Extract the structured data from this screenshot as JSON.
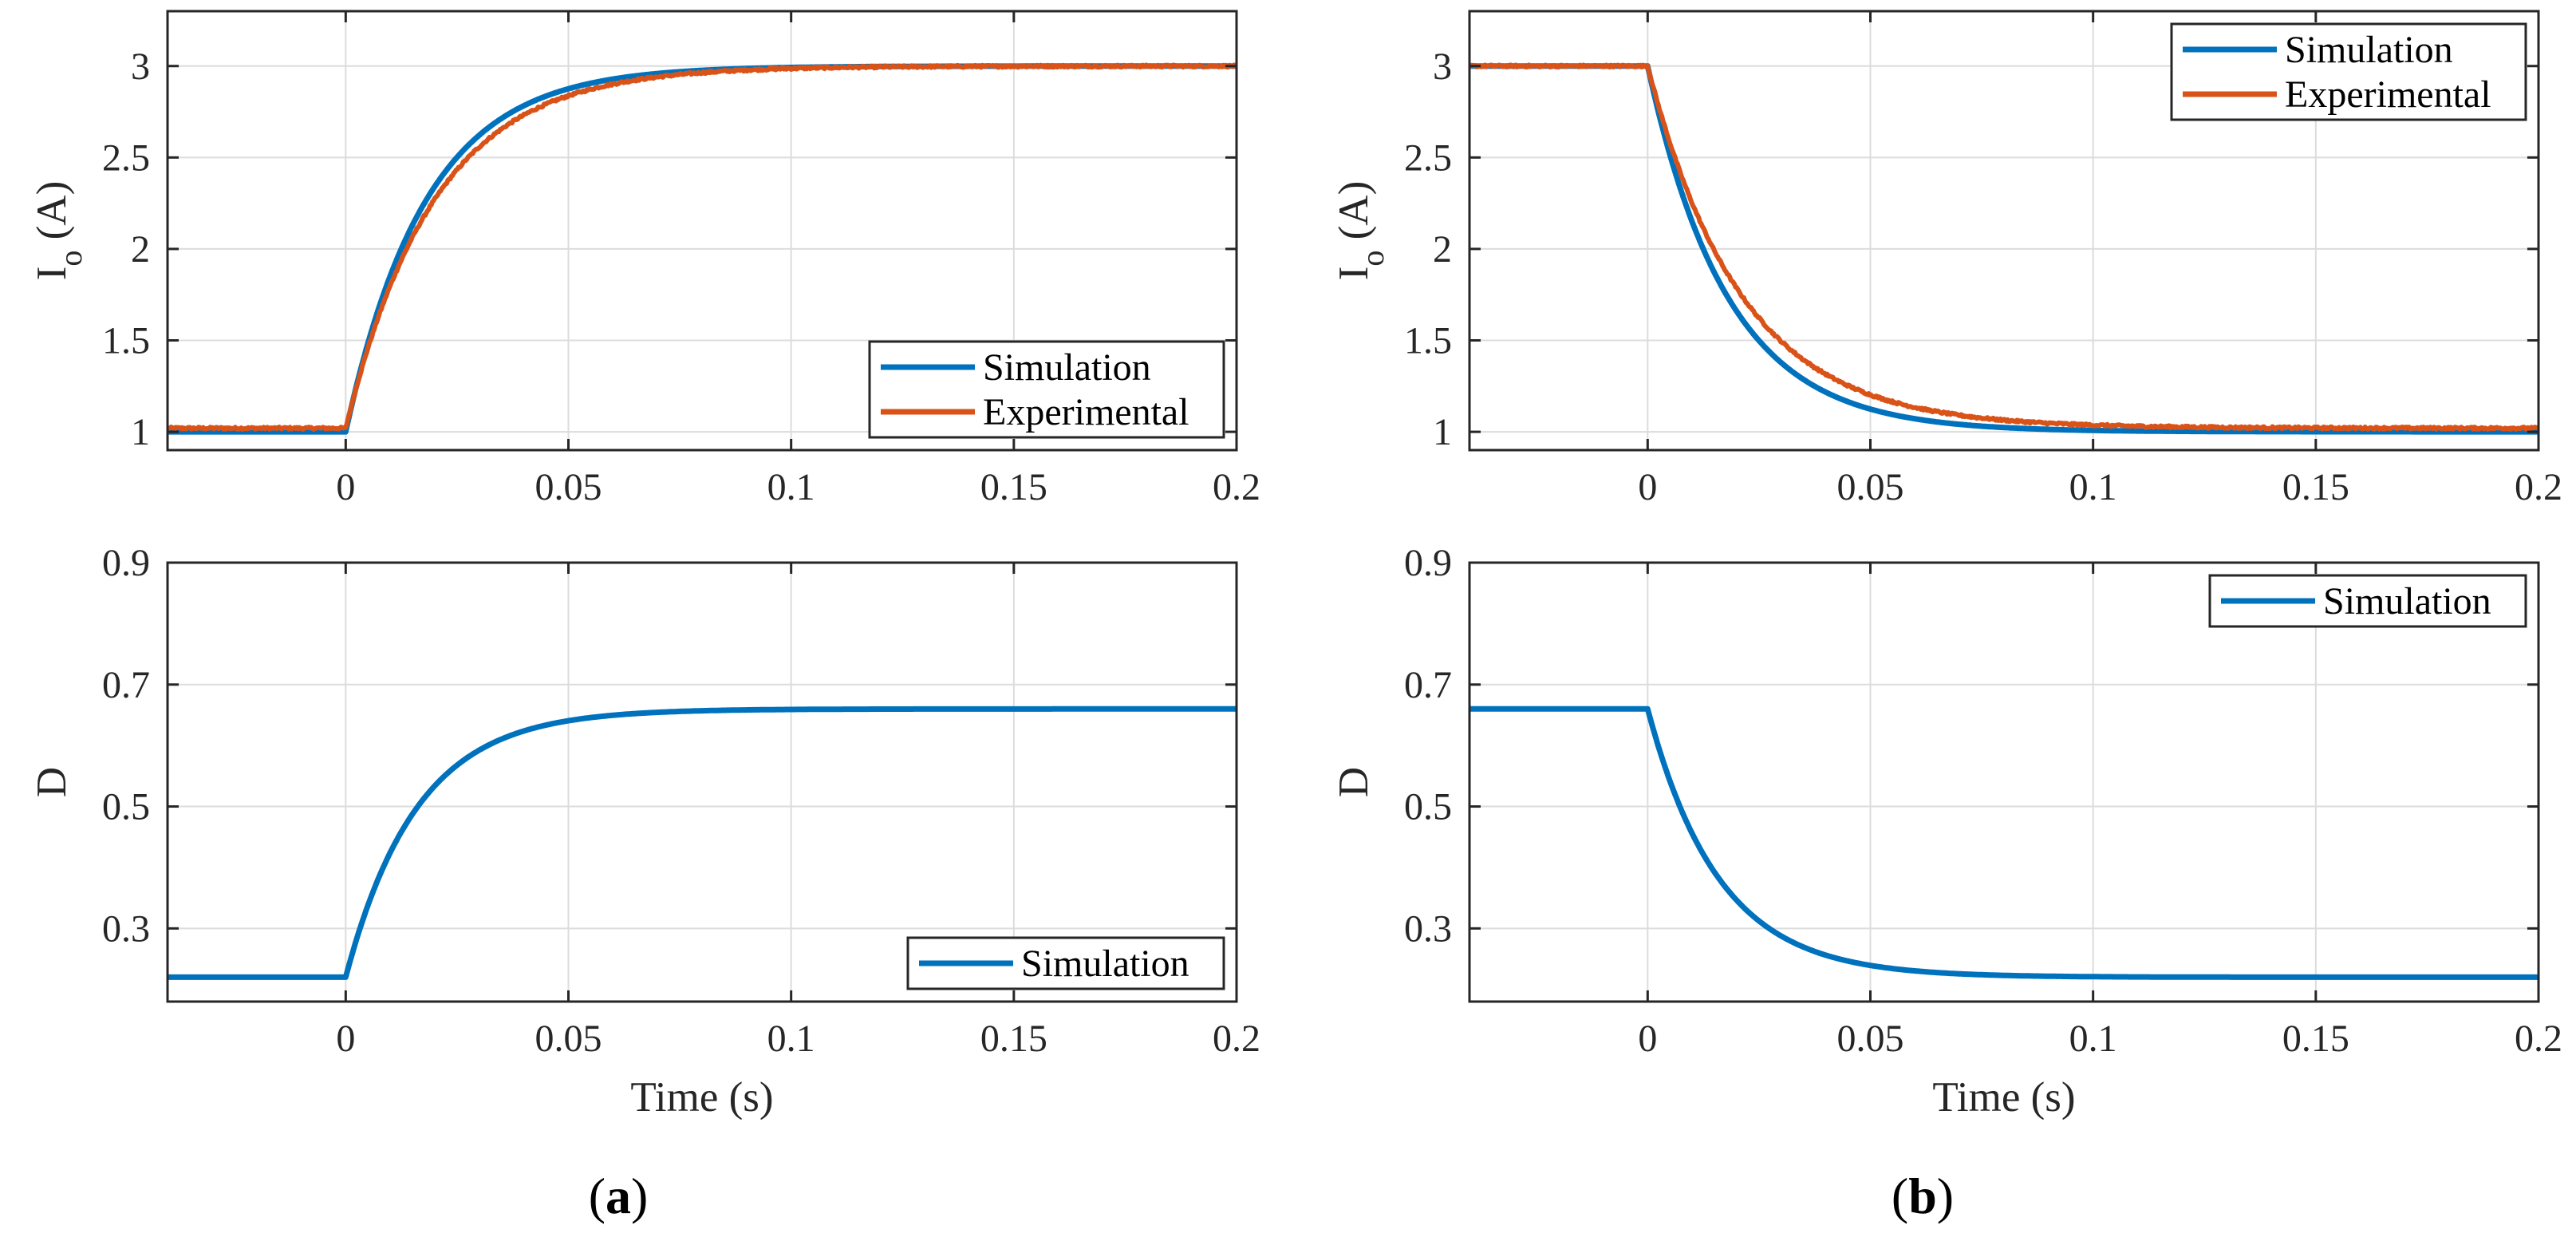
{
  "figure": {
    "panel_labels": [
      {
        "open": "(",
        "letter": "a",
        "close": ")"
      },
      {
        "open": "(",
        "letter": "b",
        "close": ")"
      }
    ]
  },
  "colors": {
    "simulation": "#0072BD",
    "experimental": "#D95319",
    "grid": "#DCDCDC",
    "axis": "#262626"
  },
  "chart_data": [
    {
      "id": "a-top",
      "type": "line",
      "panel": "a",
      "xlabel": "",
      "ylabel": {
        "main": "I",
        "sub": "o",
        "rest": " (A)"
      },
      "xlim": [
        -0.04,
        0.2
      ],
      "ylim": [
        0.9,
        3.3
      ],
      "xticks": [
        0,
        0.05,
        0.1,
        0.15,
        0.2
      ],
      "xtick_labels": [
        "0",
        "0.05",
        "0.1",
        "0.15",
        "0.2"
      ],
      "yticks": [
        1,
        1.5,
        2,
        2.5,
        3
      ],
      "ytick_labels": [
        "1",
        "1.5",
        "2",
        "2.5",
        "3"
      ],
      "grid": true,
      "legend": {
        "location": "lower-right",
        "entries": [
          "Simulation",
          "Experimental"
        ]
      },
      "series": [
        {
          "name": "Simulation",
          "color_key": "simulation",
          "step": {
            "t0": 0,
            "initial": 1.0,
            "final": 3.0,
            "tau": 0.018
          },
          "noise": 0
        },
        {
          "name": "Experimental",
          "color_key": "experimental",
          "step": {
            "t0": 0,
            "initial": 1.02,
            "final": 3.0,
            "tau": 0.02
          },
          "noise": 0.006
        }
      ]
    },
    {
      "id": "a-bottom",
      "type": "line",
      "panel": "a",
      "xlabel": "Time (s)",
      "ylabel": {
        "main": "D",
        "sub": "",
        "rest": ""
      },
      "xlim": [
        -0.04,
        0.2
      ],
      "ylim": [
        0.18,
        0.9
      ],
      "xticks": [
        0,
        0.05,
        0.1,
        0.15,
        0.2
      ],
      "xtick_labels": [
        "0",
        "0.05",
        "0.1",
        "0.15",
        "0.2"
      ],
      "yticks": [
        0.3,
        0.5,
        0.7,
        0.9
      ],
      "ytick_labels": [
        "0.3",
        "0.5",
        "0.7",
        "0.9"
      ],
      "grid": true,
      "legend": {
        "location": "lower-right",
        "entries": [
          "Simulation"
        ]
      },
      "series": [
        {
          "name": "Simulation",
          "color_key": "simulation",
          "step": {
            "t0": 0,
            "initial": 0.22,
            "final": 0.66,
            "tau": 0.016
          },
          "noise": 0
        }
      ]
    },
    {
      "id": "b-top",
      "type": "line",
      "panel": "b",
      "xlabel": "",
      "ylabel": {
        "main": "I",
        "sub": "o",
        "rest": " (A)"
      },
      "xlim": [
        -0.04,
        0.2
      ],
      "ylim": [
        0.9,
        3.3
      ],
      "xticks": [
        0,
        0.05,
        0.1,
        0.15,
        0.2
      ],
      "xtick_labels": [
        "0",
        "0.05",
        "0.1",
        "0.15",
        "0.2"
      ],
      "yticks": [
        1,
        1.5,
        2,
        2.5,
        3
      ],
      "ytick_labels": [
        "1",
        "1.5",
        "2",
        "2.5",
        "3"
      ],
      "grid": true,
      "legend": {
        "location": "top-right",
        "entries": [
          "Simulation",
          "Experimental"
        ]
      },
      "series": [
        {
          "name": "Simulation",
          "color_key": "simulation",
          "step": {
            "t0": 0,
            "initial": 3.0,
            "final": 1.0,
            "tau": 0.018
          },
          "noise": 0
        },
        {
          "name": "Experimental",
          "color_key": "experimental",
          "step": {
            "t0": 0,
            "initial": 3.0,
            "final": 1.02,
            "tau": 0.021
          },
          "noise": 0.006
        }
      ]
    },
    {
      "id": "b-bottom",
      "type": "line",
      "panel": "b",
      "xlabel": "Time (s)",
      "ylabel": {
        "main": "D",
        "sub": "",
        "rest": ""
      },
      "xlim": [
        -0.04,
        0.2
      ],
      "ylim": [
        0.18,
        0.9
      ],
      "xticks": [
        0,
        0.05,
        0.1,
        0.15,
        0.2
      ],
      "xtick_labels": [
        "0",
        "0.05",
        "0.1",
        "0.15",
        "0.2"
      ],
      "yticks": [
        0.3,
        0.5,
        0.7,
        0.9
      ],
      "ytick_labels": [
        "0.3",
        "0.5",
        "0.7",
        "0.9"
      ],
      "grid": true,
      "legend": {
        "location": "top-right",
        "entries": [
          "Simulation"
        ]
      },
      "series": [
        {
          "name": "Simulation",
          "color_key": "simulation",
          "step": {
            "t0": 0,
            "initial": 0.66,
            "final": 0.22,
            "tau": 0.016
          },
          "noise": 0
        }
      ]
    }
  ]
}
